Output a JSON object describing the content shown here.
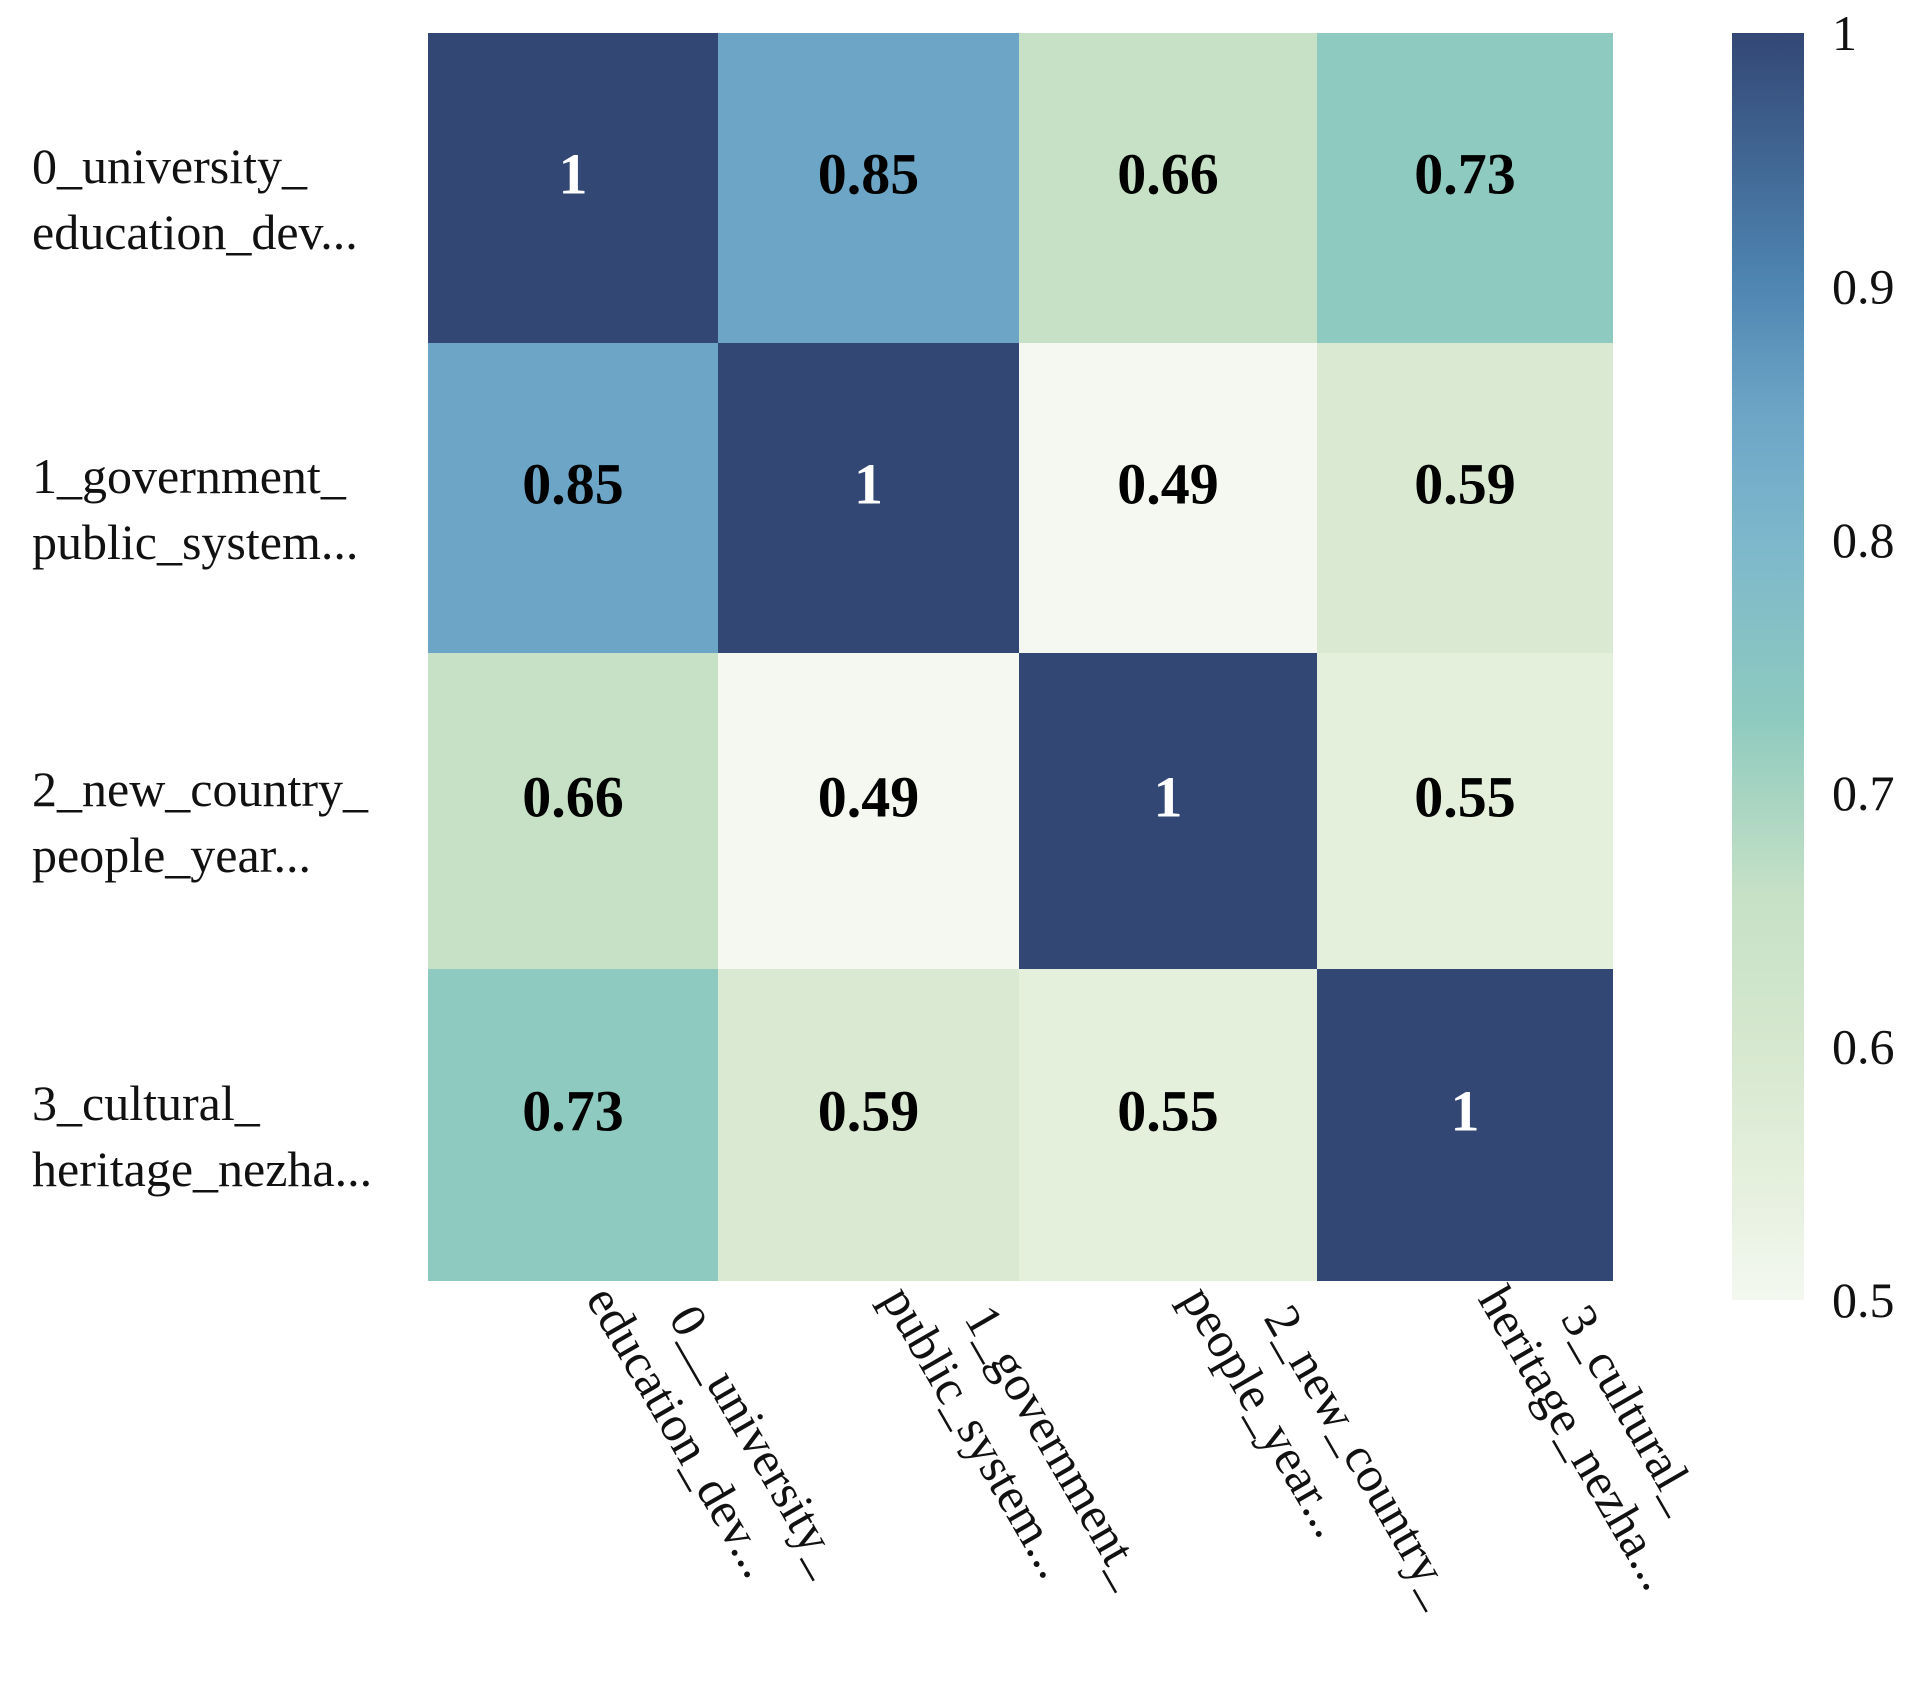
{
  "chart_data": {
    "type": "heatmap",
    "title": "",
    "xlabel": "",
    "ylabel": "",
    "row_labels": [
      [
        "0_university_",
        "education_dev..."
      ],
      [
        "1_government_",
        "public_system..."
      ],
      [
        "2_new_country_",
        "people_year..."
      ],
      [
        "3_cultural_",
        "heritage_nezha..."
      ]
    ],
    "col_labels": [
      [
        "0__university_",
        "education_dev..."
      ],
      [
        "1_government_",
        "public_system..."
      ],
      [
        "2_new_country_",
        "people_year..."
      ],
      [
        "3_cultural_",
        "heritage_nezha..."
      ]
    ],
    "values": [
      [
        1,
        0.85,
        0.66,
        0.73
      ],
      [
        0.85,
        1,
        0.49,
        0.59
      ],
      [
        0.66,
        0.49,
        1,
        0.55
      ],
      [
        0.73,
        0.59,
        0.55,
        1
      ]
    ],
    "value_labels": [
      [
        "1",
        "0.85",
        "0.66",
        "0.73"
      ],
      [
        "0.85",
        "1",
        "0.49",
        "0.59"
      ],
      [
        "0.66",
        "0.49",
        "1",
        "0.55"
      ],
      [
        "0.73",
        "0.59",
        "0.55",
        "1"
      ]
    ],
    "colorbar": {
      "min": 0.5,
      "max": 1,
      "ticks": [
        1,
        0.9,
        0.8,
        0.7,
        0.6,
        0.5
      ],
      "tick_labels": [
        "1",
        "0.9",
        "0.8",
        "0.7",
        "0.6",
        "0.5"
      ],
      "position": "right"
    },
    "colormap": [
      {
        "value": 0.5,
        "color": "#f4f8f0"
      },
      {
        "value": 0.55,
        "color": "#e4efdc"
      },
      {
        "value": 0.6,
        "color": "#d6e8cf"
      },
      {
        "value": 0.66,
        "color": "#c6e1c6"
      },
      {
        "value": 0.73,
        "color": "#8ecabf"
      },
      {
        "value": 0.8,
        "color": "#7db7cc"
      },
      {
        "value": 0.85,
        "color": "#6ca5c6"
      },
      {
        "value": 0.9,
        "color": "#4f86b2"
      },
      {
        "value": 1.0,
        "color": "#334775"
      }
    ],
    "text_colors": {
      "dark_cell": "#ffffff",
      "light_cell": "#000000"
    }
  }
}
